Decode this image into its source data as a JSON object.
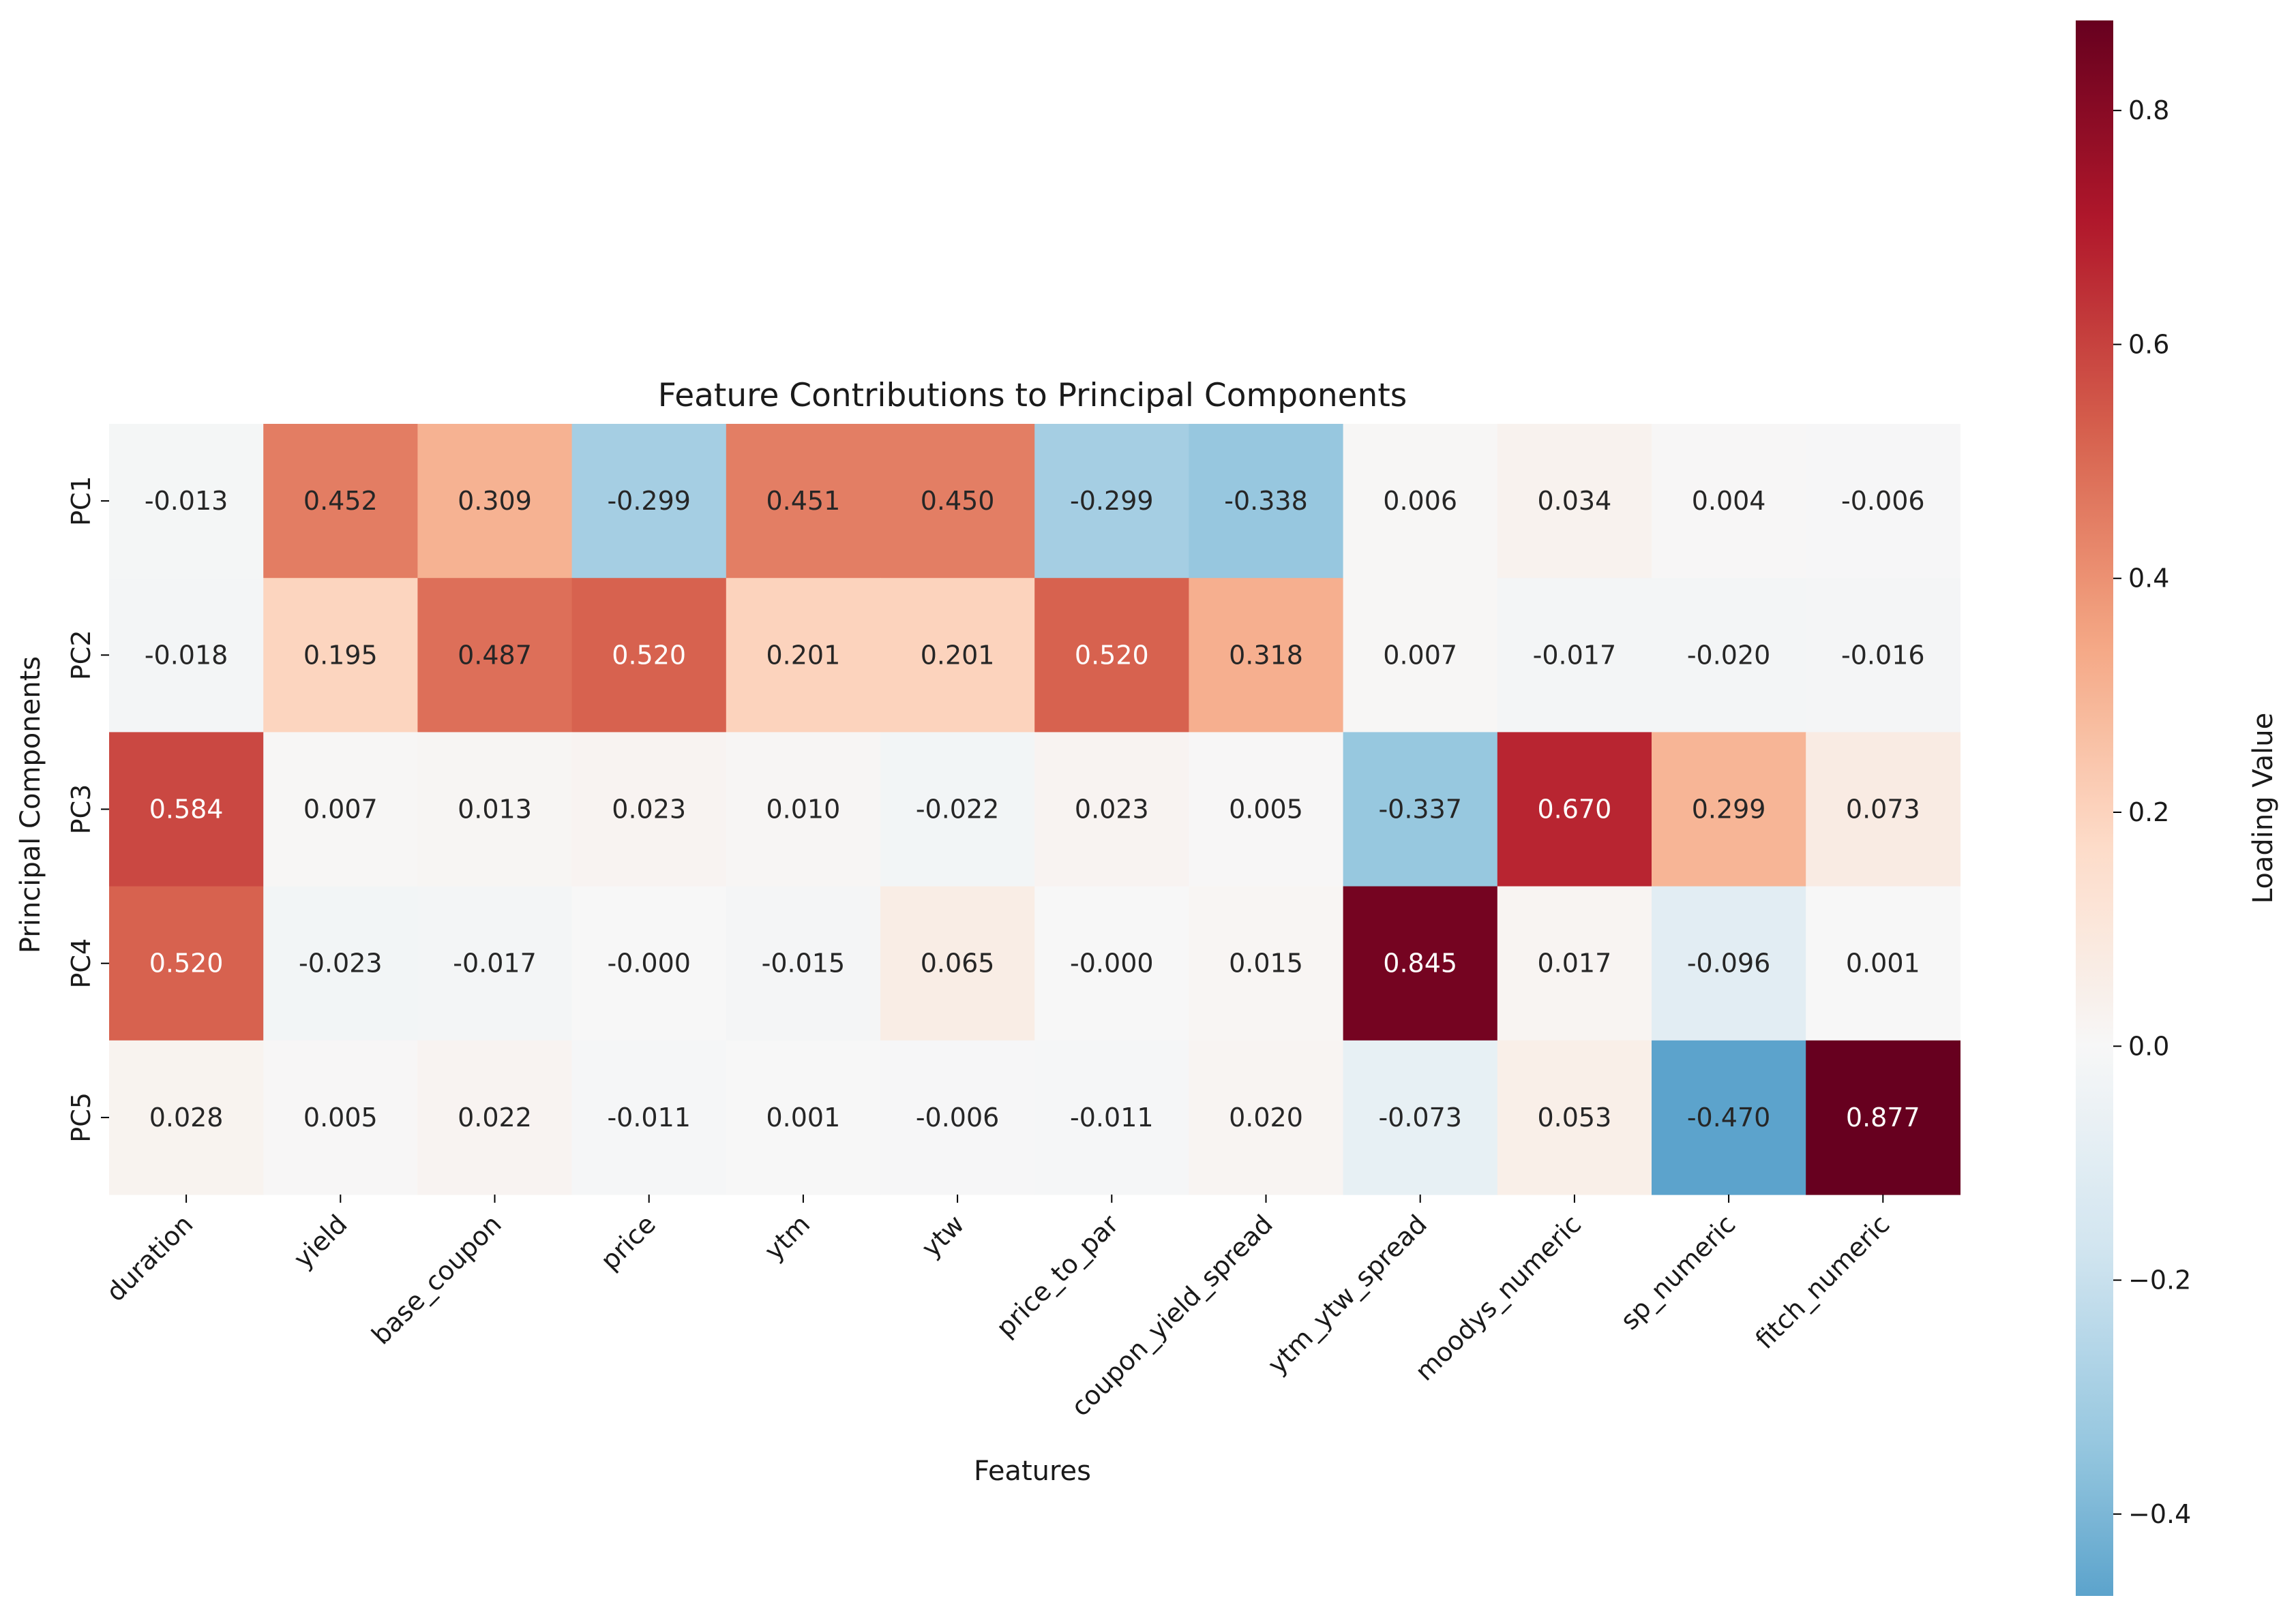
{
  "chart_data": {
    "type": "heatmap",
    "title": "Feature Contributions to Principal Components",
    "xlabel": "Features",
    "ylabel": "Principal Components",
    "x_categories": [
      "duration",
      "yield",
      "base_coupon",
      "price",
      "ytm",
      "ytw",
      "price_to_par",
      "coupon_yield_spread",
      "ytm_ytw_spread",
      "moodys_numeric",
      "sp_numeric",
      "fitch_numeric"
    ],
    "y_categories": [
      "PC1",
      "PC2",
      "PC3",
      "PC4",
      "PC5"
    ],
    "values": [
      [
        -0.013,
        0.452,
        0.309,
        -0.299,
        0.451,
        0.45,
        -0.299,
        -0.338,
        0.006,
        0.034,
        0.004,
        -0.006
      ],
      [
        -0.018,
        0.195,
        0.487,
        0.52,
        0.201,
        0.201,
        0.52,
        0.318,
        0.007,
        -0.017,
        -0.02,
        -0.016
      ],
      [
        0.584,
        0.007,
        0.013,
        0.023,
        0.01,
        -0.022,
        0.023,
        0.005,
        -0.337,
        0.67,
        0.299,
        0.073
      ],
      [
        0.52,
        -0.023,
        -0.017,
        -0.0,
        -0.015,
        0.065,
        -0.0,
        0.015,
        0.845,
        0.017,
        -0.096,
        0.001
      ],
      [
        0.028,
        0.005,
        0.022,
        -0.011,
        0.001,
        -0.006,
        -0.011,
        0.02,
        -0.073,
        0.053,
        -0.47,
        0.877
      ]
    ],
    "value_labels": [
      [
        "-0.013",
        "0.452",
        "0.309",
        "-0.299",
        "0.451",
        "0.450",
        "-0.299",
        "-0.338",
        "0.006",
        "0.034",
        "0.004",
        "-0.006"
      ],
      [
        "-0.018",
        "0.195",
        "0.487",
        "0.520",
        "0.201",
        "0.201",
        "0.520",
        "0.318",
        "0.007",
        "-0.017",
        "-0.020",
        "-0.016"
      ],
      [
        "0.584",
        "0.007",
        "0.013",
        "0.023",
        "0.010",
        "-0.022",
        "0.023",
        "0.005",
        "-0.337",
        "0.670",
        "0.299",
        "0.073"
      ],
      [
        "0.520",
        "-0.023",
        "-0.017",
        "-0.000",
        "-0.015",
        "0.065",
        "-0.000",
        "0.015",
        "0.845",
        "0.017",
        "-0.096",
        "0.001"
      ],
      [
        "0.028",
        "0.005",
        "0.022",
        "-0.011",
        "0.001",
        "-0.006",
        "-0.011",
        "0.020",
        "-0.073",
        "0.053",
        "-0.470",
        "0.877"
      ]
    ],
    "colormap": "RdBu_r",
    "center": 0.0,
    "vmin": -0.47,
    "vmax": 0.877,
    "colorbar": {
      "label": "Loading Value",
      "ticks": [
        -0.4,
        -0.2,
        0.0,
        0.2,
        0.4,
        0.6,
        0.8
      ],
      "tick_labels": [
        "−0.4",
        "−0.2",
        "0.0",
        "0.2",
        "0.4",
        "0.6",
        "0.8"
      ]
    },
    "grid": false
  }
}
